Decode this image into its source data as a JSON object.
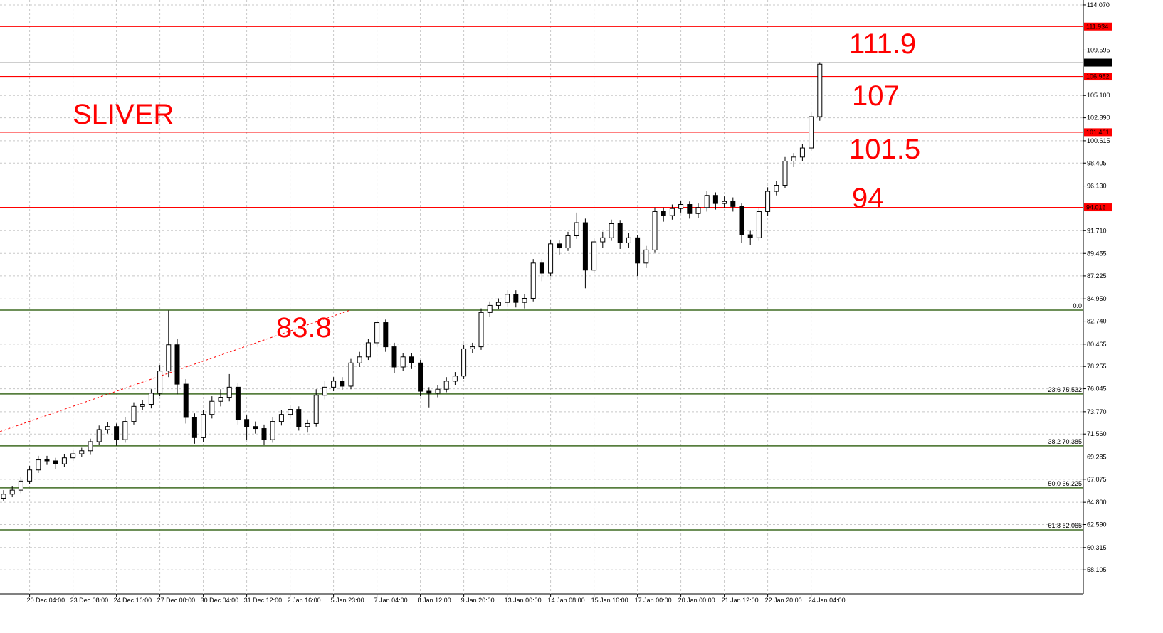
{
  "chart_data": {
    "type": "candlestick",
    "categories": [
      null,
      null,
      null,
      "20 Dec 04:00",
      null,
      null,
      null,
      null,
      "23 Dec 08:00",
      null,
      null,
      null,
      null,
      "24 Dec 16:00",
      null,
      null,
      null,
      null,
      "27 Dec 00:00",
      null,
      null,
      null,
      null,
      "30 Dec 04:00",
      null,
      null,
      null,
      null,
      "31 Dec 12:00",
      null,
      null,
      null,
      null,
      "2 Jan 16:00",
      null,
      null,
      null,
      null,
      "5 Jan 23:00",
      null,
      null,
      null,
      null,
      "7 Jan 04:00",
      null,
      null,
      null,
      null,
      "8 Jan 12:00",
      null,
      null,
      null,
      null,
      "9 Jan 20:00",
      null,
      null,
      null,
      null,
      "13 Jan 00:00",
      null,
      null,
      null,
      null,
      "14 Jan 08:00",
      null,
      null,
      null,
      null,
      "15 Jan 16:00",
      null,
      null,
      null,
      null,
      "17 Jan 00:00",
      null,
      null,
      null,
      null,
      "20 Jan 00:00",
      null,
      null,
      null,
      null,
      "21 Jan 12:00",
      null,
      null,
      null,
      null,
      "22 Jan 20:00",
      null,
      null,
      null,
      null,
      "24 Jan 04:00",
      null
    ],
    "open": [
      65.2,
      65.6,
      66.0,
      66.9,
      68.0,
      69.0,
      68.9,
      68.6,
      69.2,
      69.6,
      69.9,
      70.8,
      72.0,
      72.3,
      71.0,
      72.8,
      74.3,
      74.5,
      75.6,
      77.8,
      80.4,
      76.5,
      73.2,
      71.2,
      73.5,
      74.8,
      75.2,
      76.2,
      73.0,
      72.3,
      72.1,
      71.0,
      72.8,
      73.5,
      74.0,
      72.3,
      72.6,
      75.4,
      76.2,
      76.8,
      76.3,
      78.6,
      79.2,
      80.6,
      82.6,
      80.2,
      78.2,
      79.2,
      78.6,
      75.8,
      75.6,
      76.0,
      76.8,
      77.3,
      80.0,
      80.2,
      83.6,
      84.3,
      84.6,
      85.4,
      84.6,
      85.0,
      88.5,
      87.5,
      90.4,
      90.0,
      91.2,
      92.5,
      87.8,
      90.6,
      91.0,
      92.4,
      90.5,
      91.0,
      88.5,
      89.8,
      93.6,
      93.2,
      93.9,
      94.3,
      93.4,
      94.0,
      95.2,
      94.4,
      94.6,
      94.1,
      91.3,
      91.0,
      93.6,
      95.6,
      96.2,
      98.6,
      99.0,
      99.9,
      103.0
    ],
    "high": [
      66.0,
      66.4,
      67.3,
      68.4,
      69.4,
      69.4,
      69.2,
      69.6,
      70.0,
      70.2,
      71.1,
      72.4,
      72.7,
      72.6,
      73.2,
      74.7,
      74.9,
      76.0,
      78.4,
      83.8,
      81.0,
      77.0,
      73.6,
      73.9,
      75.3,
      76.0,
      77.5,
      76.6,
      73.4,
      72.8,
      72.5,
      73.2,
      73.9,
      74.4,
      74.3,
      73.0,
      76.0,
      76.8,
      77.2,
      77.2,
      79.0,
      79.7,
      81.0,
      82.8,
      82.9,
      80.6,
      79.6,
      79.6,
      78.9,
      76.2,
      76.4,
      77.2,
      77.7,
      80.4,
      80.6,
      84.0,
      84.7,
      85.0,
      85.8,
      85.8,
      85.4,
      88.9,
      88.9,
      90.8,
      90.8,
      91.6,
      93.5,
      92.9,
      91.0,
      91.6,
      92.8,
      92.7,
      91.5,
      91.3,
      90.2,
      94.0,
      94.0,
      94.3,
      94.7,
      94.6,
      94.4,
      95.6,
      95.5,
      95.1,
      95.0,
      94.4,
      91.7,
      94.0,
      96.0,
      96.6,
      99.0,
      99.4,
      100.3,
      103.4,
      108.4
    ],
    "low": [
      64.9,
      65.3,
      65.7,
      66.6,
      67.7,
      68.5,
      68.1,
      68.3,
      68.9,
      69.3,
      69.5,
      70.5,
      71.6,
      70.4,
      70.7,
      72.5,
      73.9,
      74.1,
      75.3,
      77.2,
      75.5,
      72.6,
      70.6,
      70.8,
      73.1,
      74.3,
      74.8,
      72.5,
      71.0,
      71.6,
      70.5,
      70.7,
      72.4,
      73.1,
      71.9,
      71.7,
      72.3,
      75.0,
      75.8,
      75.9,
      76.0,
      78.2,
      78.9,
      80.2,
      79.7,
      77.6,
      77.8,
      78.0,
      75.3,
      74.2,
      75.2,
      75.7,
      76.4,
      77.0,
      79.6,
      79.9,
      83.2,
      83.9,
      84.2,
      84.1,
      84.0,
      84.7,
      86.7,
      87.2,
      89.3,
      89.7,
      90.9,
      86.0,
      87.5,
      90.0,
      90.7,
      89.9,
      90.0,
      87.2,
      88.0,
      89.5,
      92.6,
      92.8,
      93.5,
      92.9,
      93.0,
      93.6,
      93.8,
      94.0,
      93.6,
      90.5,
      90.3,
      90.7,
      93.2,
      95.2,
      95.9,
      98.0,
      98.6,
      99.6,
      102.6
    ],
    "close": [
      65.6,
      66.0,
      66.9,
      68.0,
      69.0,
      68.9,
      68.6,
      69.2,
      69.6,
      69.9,
      70.8,
      72.0,
      72.3,
      71.0,
      72.8,
      74.3,
      74.5,
      75.6,
      77.8,
      80.4,
      76.5,
      73.2,
      71.2,
      73.5,
      74.8,
      75.2,
      76.2,
      73.0,
      72.3,
      72.1,
      71.0,
      72.8,
      73.5,
      74.0,
      72.3,
      72.6,
      75.4,
      76.2,
      76.8,
      76.3,
      78.6,
      79.2,
      80.6,
      82.6,
      80.2,
      78.2,
      79.2,
      78.6,
      75.8,
      75.6,
      76.0,
      76.8,
      77.3,
      80.0,
      80.2,
      83.6,
      84.3,
      84.6,
      85.4,
      84.6,
      85.0,
      88.5,
      87.5,
      90.4,
      90.0,
      91.2,
      92.5,
      87.8,
      90.6,
      91.0,
      92.4,
      90.5,
      91.0,
      88.5,
      89.8,
      93.6,
      93.2,
      93.9,
      94.3,
      93.4,
      94.0,
      95.2,
      94.4,
      94.6,
      94.1,
      91.3,
      91.0,
      93.6,
      95.6,
      96.2,
      98.6,
      99.0,
      99.9,
      103.0,
      108.2
    ],
    "ylim": [
      55.72,
      114.56
    ],
    "yticks": [
      {
        "value": 114.07,
        "label": "114.070"
      },
      {
        "value": 109.595,
        "label": "109.595"
      },
      {
        "value": 105.1,
        "label": "105.100"
      },
      {
        "value": 102.89,
        "label": "102.890"
      },
      {
        "value": 100.615,
        "label": "100.615"
      },
      {
        "value": 98.405,
        "label": "98.405"
      },
      {
        "value": 96.13,
        "label": "96.130"
      },
      {
        "value": 91.71,
        "label": "91.710"
      },
      {
        "value": 89.455,
        "label": "89.455"
      },
      {
        "value": 87.225,
        "label": "87.225"
      },
      {
        "value": 84.95,
        "label": "84.950"
      },
      {
        "value": 82.74,
        "label": "82.740"
      },
      {
        "value": 80.465,
        "label": "80.465"
      },
      {
        "value": 78.255,
        "label": "78.255"
      },
      {
        "value": 76.045,
        "label": "76.045"
      },
      {
        "value": 73.77,
        "label": "73.770"
      },
      {
        "value": 71.56,
        "label": "71.560"
      },
      {
        "value": 69.285,
        "label": "69.285"
      },
      {
        "value": 67.075,
        "label": "67.075"
      },
      {
        "value": 64.8,
        "label": "64.800"
      },
      {
        "value": 62.59,
        "label": "62.590"
      },
      {
        "value": 60.315,
        "label": "60.315"
      },
      {
        "value": 58.105,
        "label": "58.105"
      }
    ],
    "grid": true,
    "levels": [
      {
        "value": 111.934,
        "label": "111.934",
        "color": "#ff0000"
      },
      {
        "value": 108.357,
        "label": "108.357",
        "color": "#000000"
      },
      {
        "value": 106.982,
        "label": "106.982",
        "color": "#ff0000"
      },
      {
        "value": 101.461,
        "label": "101.461",
        "color": "#ff0000"
      },
      {
        "value": 94.016,
        "label": "94.016",
        "color": "#ff0000"
      }
    ],
    "fib_levels": [
      {
        "value": 83.84,
        "label": "0.0"
      },
      {
        "value": 75.532,
        "label": "23.6 75.532"
      },
      {
        "value": 70.385,
        "label": "38.2 70.385"
      },
      {
        "value": 66.225,
        "label": "50.0 66.225"
      },
      {
        "value": 62.065,
        "label": "61.8 62.065"
      }
    ],
    "fib_color": "#3f6b22",
    "trendline": {
      "x": [
        -0.4,
        39.8
      ],
      "y": [
        71.8,
        83.8
      ],
      "color": "#ff0000"
    },
    "annotations": [
      "SLIVER",
      "111.9",
      "107",
      "101.5",
      "94",
      "83.8"
    ]
  }
}
